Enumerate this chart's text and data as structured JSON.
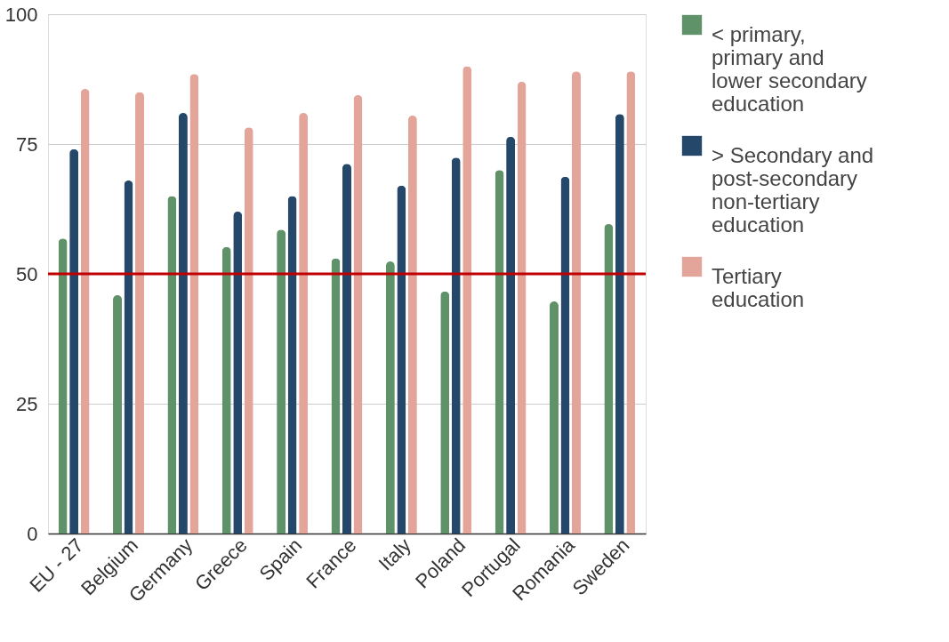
{
  "chart_data": {
    "type": "bar",
    "categories": [
      "EU - 27",
      "Belgium",
      "Germany",
      "Greece",
      "Spain",
      "France",
      "Italy",
      "Poland",
      "Portugal",
      "Romania",
      "Sweden"
    ],
    "series": [
      {
        "name": "< primary, primary and lower secondary education",
        "color": "#5f9268",
        "values": [
          56.8,
          45.9,
          65,
          55.2,
          58.5,
          53,
          52.4,
          46.6,
          70,
          44.7,
          59.6
        ]
      },
      {
        "name": "> Secondary and post-secondary non-tertiary education",
        "color": "#24476a",
        "values": [
          74,
          68,
          81,
          62,
          65,
          71.2,
          67,
          72.4,
          76.4,
          68.7,
          80.8
        ]
      },
      {
        "name": "Tertiary education",
        "color": "#e3a59a",
        "values": [
          85.6,
          85,
          88.5,
          78.2,
          81,
          84.4,
          80.5,
          90,
          87,
          89,
          89
        ]
      }
    ],
    "ylim": [
      0,
      100
    ],
    "yticks": [
      0,
      25,
      50,
      75,
      100
    ],
    "ref_lines": [
      {
        "axis": "y",
        "value": 50,
        "color": "#c00000"
      }
    ],
    "grid": "y",
    "legend": "top right"
  }
}
